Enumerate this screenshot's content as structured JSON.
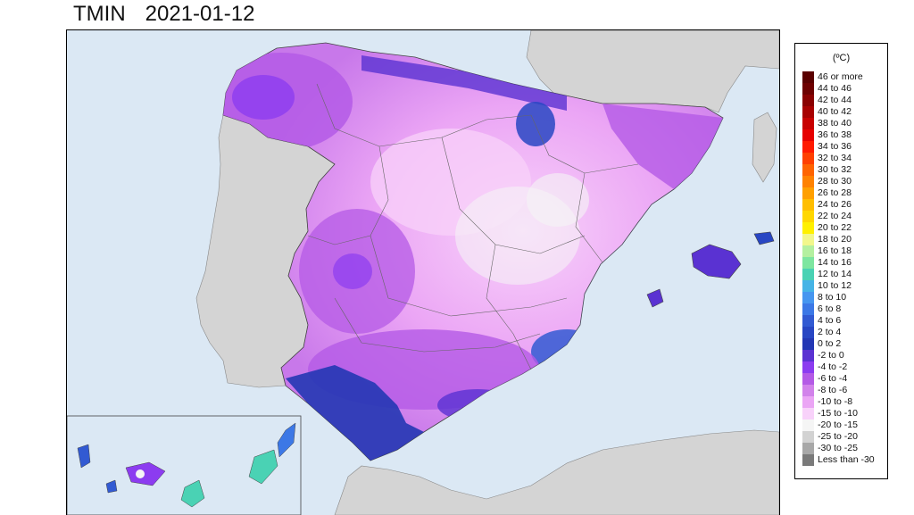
{
  "map": {
    "variable": "TMIN",
    "date": "2021-01-12"
  },
  "legend": {
    "unit": "(ºC)",
    "items": [
      {
        "label": "46 or more",
        "color": "#5a0000"
      },
      {
        "label": "44 to 46",
        "color": "#6e0000"
      },
      {
        "label": "42 to 44",
        "color": "#8a0000"
      },
      {
        "label": "40 to 42",
        "color": "#a80000"
      },
      {
        "label": "38 to 40",
        "color": "#c80000"
      },
      {
        "label": "36 to 38",
        "color": "#e60000"
      },
      {
        "label": "34 to 36",
        "color": "#ff1a00"
      },
      {
        "label": "32 to 34",
        "color": "#ff4000"
      },
      {
        "label": "30 to 32",
        "color": "#ff6400"
      },
      {
        "label": "28 to 30",
        "color": "#ff8200"
      },
      {
        "label": "26 to 28",
        "color": "#ffa000"
      },
      {
        "label": "24 to 26",
        "color": "#ffbe00"
      },
      {
        "label": "22 to 24",
        "color": "#ffd700"
      },
      {
        "label": "20 to 22",
        "color": "#fff000"
      },
      {
        "label": "18 to 20",
        "color": "#f2f78c"
      },
      {
        "label": "16 to 18",
        "color": "#b4f0a0"
      },
      {
        "label": "14 to 16",
        "color": "#7de6a0"
      },
      {
        "label": "12 to 14",
        "color": "#4ad2b4"
      },
      {
        "label": "10 to 12",
        "color": "#46b4e6"
      },
      {
        "label": "8 to 10",
        "color": "#4696f0"
      },
      {
        "label": "6 to 8",
        "color": "#3c78e6"
      },
      {
        "label": "4 to 6",
        "color": "#325ad2"
      },
      {
        "label": "2 to 4",
        "color": "#2846c3"
      },
      {
        "label": "0 to 2",
        "color": "#2337b4"
      },
      {
        "label": "-2 to 0",
        "color": "#5a32d2"
      },
      {
        "label": "-4 to -2",
        "color": "#8c3cf0"
      },
      {
        "label": "-6 to -4",
        "color": "#b45ae6"
      },
      {
        "label": "-8 to -6",
        "color": "#d282eb"
      },
      {
        "label": "-10 to -8",
        "color": "#eba5f5"
      },
      {
        "label": "-15 to -10",
        "color": "#f8d2fa"
      },
      {
        "label": "-20 to -15",
        "color": "#f5f5f5"
      },
      {
        "label": "-25 to -20",
        "color": "#d2d2d2"
      },
      {
        "label": "-30 to -25",
        "color": "#a8a8a8"
      },
      {
        "label": "Less than -30",
        "color": "#7a7a7a"
      }
    ]
  },
  "colors": {
    "sea": "#dbe8f4",
    "foreign_land": "#d4d4d4",
    "border": "#555555"
  }
}
